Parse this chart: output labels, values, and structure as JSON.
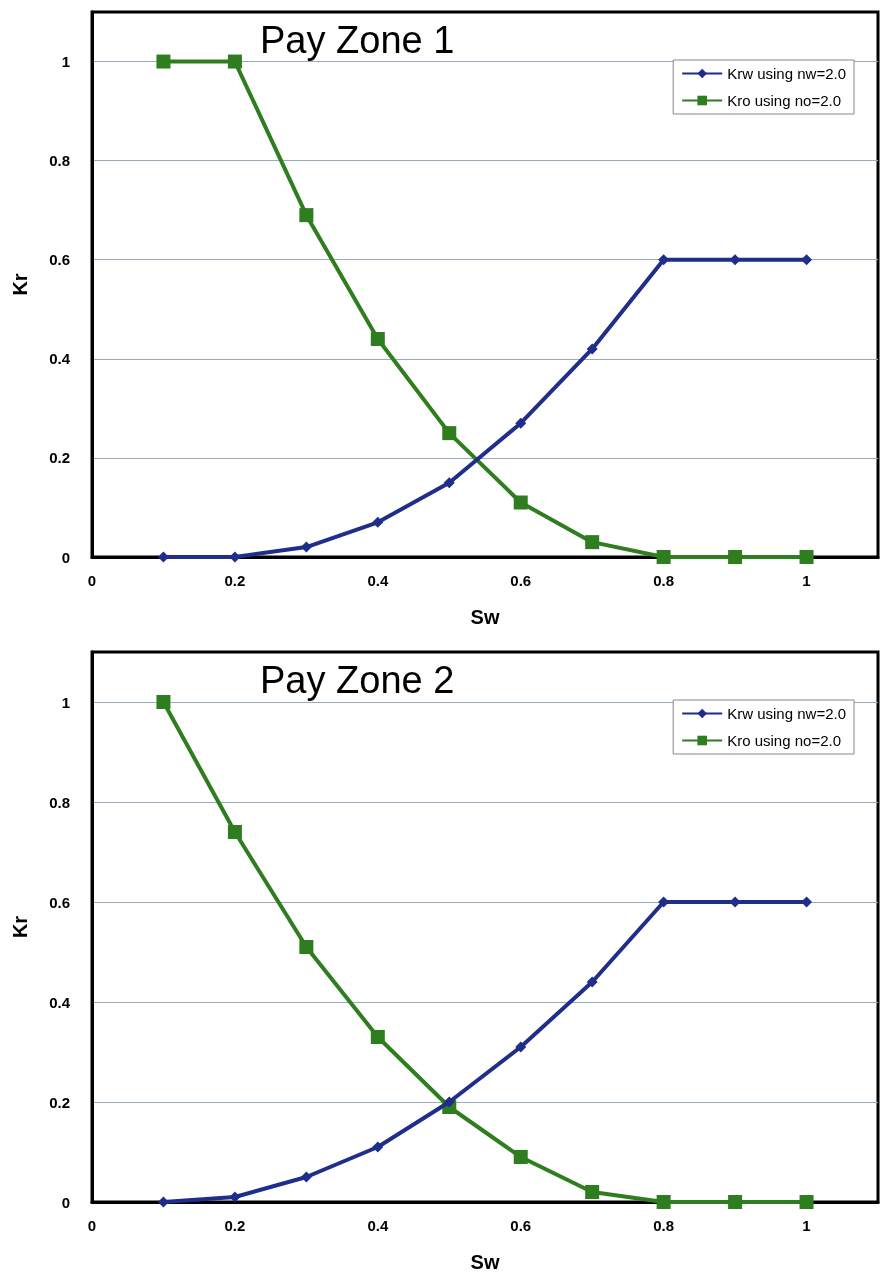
{
  "chart_data": [
    {
      "type": "line",
      "title": "Pay Zone 1",
      "xlabel": "Sw",
      "ylabel": "Kr",
      "x": [
        0.1,
        0.2,
        0.3,
        0.4,
        0.5,
        0.6,
        0.7,
        0.8,
        0.9,
        1.0
      ],
      "series": [
        {
          "name": "Krw using nw=2.0",
          "color": "#1f2e8a",
          "marker": "diamond",
          "values": [
            0,
            0,
            0.02,
            0.07,
            0.15,
            0.27,
            0.42,
            0.6,
            0.6,
            0.6
          ]
        },
        {
          "name": "Kro using no=2.0",
          "color": "#2e7d1f",
          "marker": "square",
          "values": [
            1,
            1,
            0.69,
            0.44,
            0.25,
            0.11,
            0.03,
            0,
            0,
            0
          ]
        }
      ],
      "xlim": [
        0,
        1.1
      ],
      "xticks": [
        0,
        0.2,
        0.4,
        0.6,
        0.8,
        1
      ],
      "ylim": [
        0,
        1.1
      ],
      "yticks": [
        0,
        0.2,
        0.4,
        0.6,
        0.8,
        1
      ],
      "grid": "y",
      "legend": "top right"
    },
    {
      "type": "line",
      "title": "Pay Zone 2",
      "xlabel": "Sw",
      "ylabel": "Kr",
      "x": [
        0.1,
        0.2,
        0.3,
        0.4,
        0.5,
        0.6,
        0.7,
        0.8,
        0.9,
        1.0
      ],
      "series": [
        {
          "name": "Krw using nw=2.0",
          "color": "#1f2e8a",
          "marker": "diamond",
          "values": [
            0,
            0.01,
            0.05,
            0.11,
            0.2,
            0.31,
            0.44,
            0.6,
            0.6,
            0.6
          ]
        },
        {
          "name": "Kro using no=2.0",
          "color": "#2e7d1f",
          "marker": "square",
          "values": [
            1,
            0.74,
            0.51,
            0.33,
            0.19,
            0.09,
            0.02,
            0,
            0,
            0
          ]
        }
      ],
      "xlim": [
        0,
        1.1
      ],
      "xticks": [
        0,
        0.2,
        0.4,
        0.6,
        0.8,
        1
      ],
      "ylim": [
        0,
        1.1
      ],
      "yticks": [
        0,
        0.2,
        0.4,
        0.6,
        0.8,
        1
      ],
      "grid": "y",
      "legend": "top right"
    }
  ]
}
